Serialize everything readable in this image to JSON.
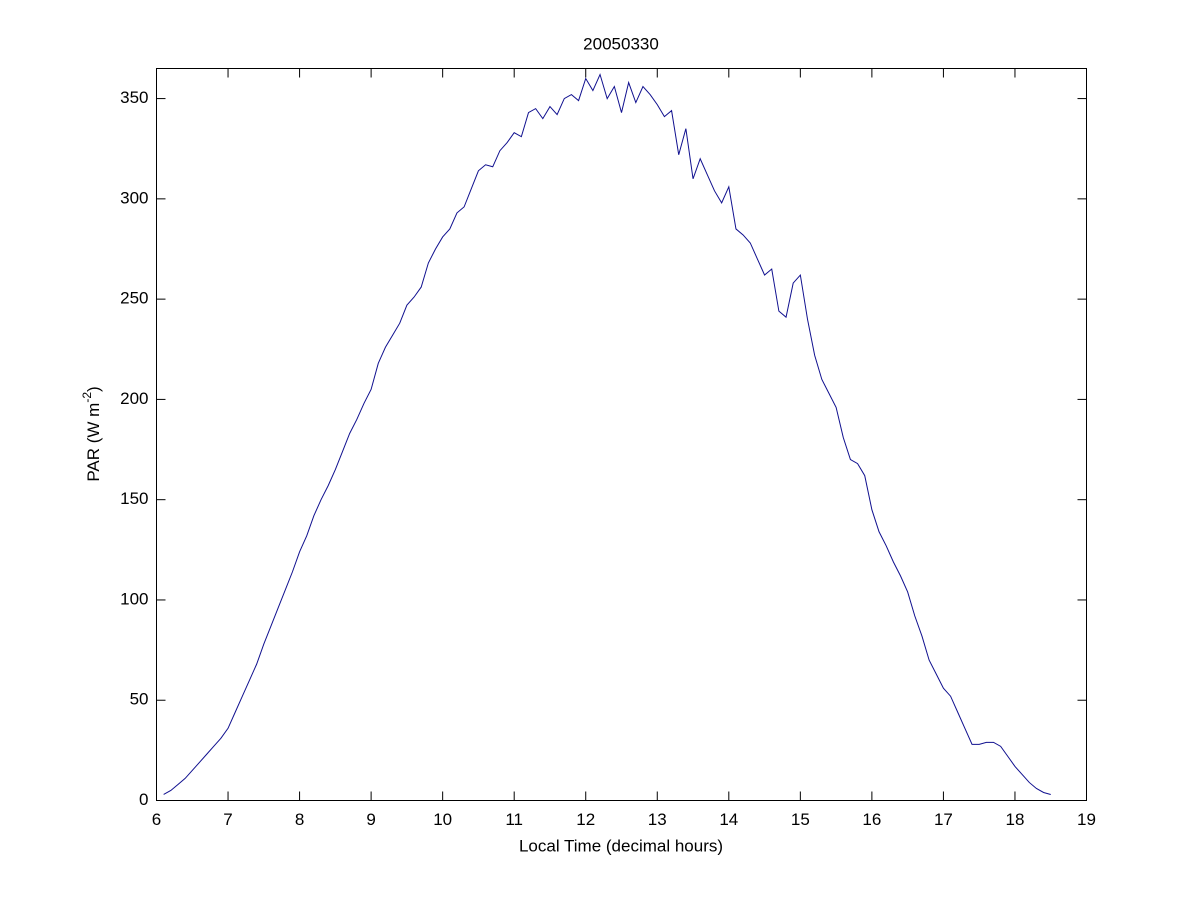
{
  "chart_data": {
    "type": "line",
    "title": "20050330",
    "xlabel": "Local Time (decimal hours)",
    "ylabel": [
      "PAR (W m",
      "-2",
      ")"
    ],
    "x": [
      6.1,
      6.2,
      6.3,
      6.4,
      6.5,
      6.6,
      6.7,
      6.8,
      6.9,
      7.0,
      7.1,
      7.2,
      7.3,
      7.4,
      7.5,
      7.6,
      7.7,
      7.8,
      7.9,
      8.0,
      8.1,
      8.2,
      8.3,
      8.4,
      8.5,
      8.6,
      8.7,
      8.8,
      8.9,
      9.0,
      9.1,
      9.2,
      9.3,
      9.4,
      9.5,
      9.6,
      9.7,
      9.8,
      9.9,
      10.0,
      10.1,
      10.2,
      10.3,
      10.4,
      10.5,
      10.6,
      10.7,
      10.8,
      10.9,
      11.0,
      11.1,
      11.2,
      11.3,
      11.4,
      11.5,
      11.6,
      11.7,
      11.8,
      11.9,
      12.0,
      12.1,
      12.2,
      12.3,
      12.4,
      12.5,
      12.6,
      12.7,
      12.8,
      12.9,
      13.0,
      13.1,
      13.2,
      13.3,
      13.4,
      13.5,
      13.6,
      13.7,
      13.8,
      13.9,
      14.0,
      14.1,
      14.2,
      14.3,
      14.4,
      14.5,
      14.6,
      14.7,
      14.8,
      14.9,
      15.0,
      15.1,
      15.2,
      15.3,
      15.4,
      15.5,
      15.6,
      15.7,
      15.8,
      15.9,
      16.0,
      16.1,
      16.2,
      16.3,
      16.4,
      16.5,
      16.6,
      16.7,
      16.8,
      16.9,
      17.0,
      17.1,
      17.2,
      17.3,
      17.4,
      17.5,
      17.6,
      17.7,
      17.8,
      17.9,
      18.0,
      18.1,
      18.2,
      18.3,
      18.4,
      18.5
    ],
    "series": [
      {
        "name": "PAR",
        "color": "#10108f",
        "values": [
          3,
          5,
          8,
          11,
          15,
          19,
          23,
          27,
          31,
          36,
          44,
          52,
          60,
          68,
          78,
          87,
          96,
          105,
          114,
          124,
          132,
          142,
          150,
          157,
          165,
          174,
          183,
          190,
          198,
          205,
          218,
          226,
          232,
          238,
          247,
          251,
          256,
          268,
          275,
          281,
          285,
          293,
          296,
          305,
          314,
          317,
          316,
          324,
          328,
          333,
          331,
          343,
          345,
          340,
          346,
          342,
          350,
          352,
          349,
          360,
          354,
          362,
          350,
          356,
          343,
          358,
          348,
          356,
          352,
          347,
          341,
          344,
          322,
          335,
          310,
          320,
          312,
          304,
          298,
          306,
          285,
          282,
          278,
          270,
          262,
          265,
          244,
          241,
          258,
          262,
          240,
          222,
          210,
          203,
          196,
          181,
          170,
          168,
          162,
          145,
          134,
          127,
          119,
          112,
          104,
          92,
          82,
          70,
          63,
          56,
          52,
          44,
          36,
          28,
          28,
          29,
          29,
          27,
          22,
          17,
          13,
          9,
          6,
          4,
          3
        ]
      }
    ],
    "xlim": [
      6,
      19
    ],
    "xticks": [
      6,
      7,
      8,
      9,
      10,
      11,
      12,
      13,
      14,
      15,
      16,
      17,
      18,
      19
    ],
    "ylim": [
      0,
      365
    ],
    "yticks": [
      0,
      50,
      100,
      150,
      200,
      250,
      300,
      350
    ],
    "grid": false
  }
}
